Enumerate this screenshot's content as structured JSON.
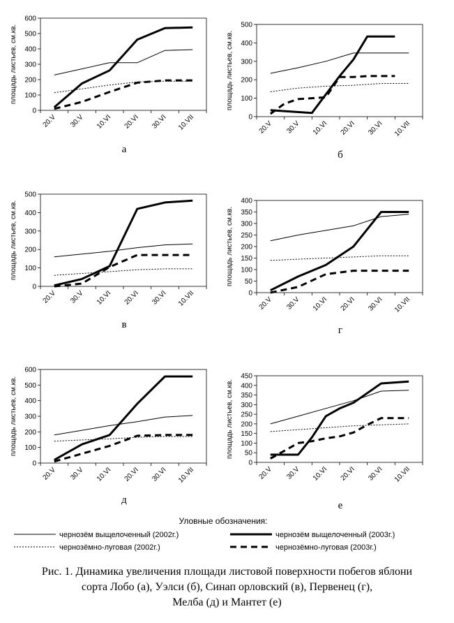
{
  "chart_data": [
    {
      "type": "line",
      "panel": "а",
      "ylabel": "площадь листьев, см.кв.",
      "ylim": [
        0,
        600
      ],
      "yticks": [
        0,
        100,
        200,
        300,
        400,
        500,
        600
      ],
      "categories": [
        "20.V",
        "30.V",
        "10.VI",
        "20.VI",
        "30.VI",
        "10.VII"
      ],
      "series": [
        {
          "name": "чернозём выщелоченный (2002г.)",
          "style": "thin",
          "x": [
            0,
            1,
            2,
            3,
            4,
            5
          ],
          "values": [
            230,
            270,
            310,
            310,
            390,
            395
          ]
        },
        {
          "name": "черноземно-луговая (2002г.)",
          "style": "dotted",
          "x": [
            0,
            1,
            2,
            3,
            4,
            5
          ],
          "values": [
            115,
            140,
            165,
            185,
            190,
            190
          ]
        },
        {
          "name": "чернозём выщелоченный (2003г.)",
          "style": "thick",
          "x": [
            0,
            1,
            2,
            3,
            4,
            5
          ],
          "values": [
            20,
            175,
            260,
            460,
            535,
            540
          ]
        },
        {
          "name": "черноземно-луговая (2003г.)",
          "style": "dashed",
          "x": [
            0,
            1,
            2,
            3,
            4,
            5
          ],
          "values": [
            10,
            55,
            120,
            180,
            195,
            195
          ]
        }
      ]
    },
    {
      "type": "line",
      "panel": "б",
      "ylabel": "площадь листьев, см.кв.",
      "ylim": [
        0,
        500
      ],
      "yticks": [
        0,
        100,
        200,
        300,
        400,
        500
      ],
      "categories": [
        "20.V",
        "30.V",
        "10.VI",
        "20.VI",
        "30.VI",
        "10.VII"
      ],
      "series": [
        {
          "name": "чернозём выщелоченный (2002г.)",
          "style": "thin",
          "x": [
            0,
            1,
            2,
            3,
            4,
            5
          ],
          "values": [
            235,
            265,
            300,
            345,
            345,
            345
          ]
        },
        {
          "name": "черноземно-луговая (2002г.)",
          "style": "dotted",
          "x": [
            0,
            1,
            2,
            3,
            4,
            5
          ],
          "values": [
            135,
            155,
            165,
            170,
            180,
            180
          ]
        },
        {
          "name": "чернозём выщелоченный (2003г.)",
          "style": "thick",
          "x": [
            0,
            0.5,
            1.5,
            2.5,
            3,
            3.5,
            4.5
          ],
          "values": [
            35,
            30,
            20,
            220,
            310,
            435,
            435
          ]
        },
        {
          "name": "черноземно-луговая (2003г.)",
          "style": "dashed",
          "x": [
            0,
            0.5,
            1,
            1.5,
            2,
            2.5,
            3,
            3.5,
            4.5
          ],
          "values": [
            15,
            70,
            95,
            100,
            105,
            215,
            215,
            220,
            220
          ]
        }
      ]
    },
    {
      "type": "line",
      "panel": "в",
      "ylabel": "площадь листьев, см.кв.",
      "ylim": [
        0,
        500
      ],
      "yticks": [
        0,
        100,
        200,
        300,
        400,
        500
      ],
      "categories": [
        "20.V",
        "30.V",
        "10.VI",
        "20.VI",
        "30.VI",
        "10.VII"
      ],
      "series": [
        {
          "name": "чернозём выщелоченный (2002г.)",
          "style": "thin",
          "x": [
            0,
            1,
            2,
            3,
            4,
            5
          ],
          "values": [
            160,
            175,
            190,
            210,
            225,
            230
          ]
        },
        {
          "name": "черноземно-луговая (2002г.)",
          "style": "dotted",
          "x": [
            0,
            1,
            2,
            3,
            4,
            5
          ],
          "values": [
            60,
            70,
            80,
            90,
            95,
            95
          ]
        },
        {
          "name": "чернозём выщелоченный (2003г.)",
          "style": "thick",
          "x": [
            0,
            1,
            2,
            3,
            4,
            5
          ],
          "values": [
            5,
            40,
            110,
            420,
            455,
            465
          ]
        },
        {
          "name": "черноземно-луговая (2003г.)",
          "style": "dashed",
          "x": [
            0,
            1,
            2,
            3,
            4,
            5
          ],
          "values": [
            0,
            15,
            105,
            170,
            170,
            170
          ]
        }
      ]
    },
    {
      "type": "line",
      "panel": "г",
      "ylabel": "площадь листьев, см.кв.",
      "ylim": [
        0,
        400
      ],
      "yticks": [
        0,
        50,
        100,
        150,
        200,
        250,
        300,
        350,
        400
      ],
      "categories": [
        "20.V",
        "30.V",
        "10.VI",
        "20.VI",
        "30.VI",
        "10.VII"
      ],
      "series": [
        {
          "name": "чернозём выщелоченный (2002г.)",
          "style": "thin",
          "x": [
            0,
            1,
            2,
            3,
            4,
            5
          ],
          "values": [
            225,
            250,
            270,
            290,
            330,
            340
          ]
        },
        {
          "name": "черноземно-луговая (2002г.)",
          "style": "dotted",
          "x": [
            0,
            1,
            2,
            3,
            4,
            5
          ],
          "values": [
            140,
            145,
            150,
            155,
            160,
            160
          ]
        },
        {
          "name": "чернозём выщелоченный (2003г.)",
          "style": "thick",
          "x": [
            0,
            1,
            2,
            3,
            4,
            5
          ],
          "values": [
            10,
            70,
            120,
            200,
            350,
            350
          ]
        },
        {
          "name": "черноземно-луговая (2003г.)",
          "style": "dashed",
          "x": [
            0,
            1,
            2,
            3,
            4,
            5
          ],
          "values": [
            0,
            25,
            80,
            95,
            95,
            95
          ]
        }
      ]
    },
    {
      "type": "line",
      "panel": "д",
      "ylabel": "площадь листьев, см.кв.",
      "ylim": [
        0,
        600
      ],
      "yticks": [
        0,
        100,
        200,
        300,
        400,
        500,
        600
      ],
      "categories": [
        "20.V",
        "30.V",
        "10.VI",
        "20.VI",
        "30.VI",
        "10.VII"
      ],
      "series": [
        {
          "name": "чернозём выщелоченный (2002г.)",
          "style": "thin",
          "x": [
            0,
            1,
            2,
            3,
            4,
            5
          ],
          "values": [
            180,
            210,
            240,
            265,
            295,
            305
          ]
        },
        {
          "name": "черноземно-луговая (2002г.)",
          "style": "dotted",
          "x": [
            0,
            1,
            2,
            3,
            4,
            5
          ],
          "values": [
            140,
            148,
            155,
            165,
            170,
            170
          ]
        },
        {
          "name": "чернозём выщелоченный (2003г.)",
          "style": "thick",
          "x": [
            0,
            1,
            2,
            3,
            4,
            5
          ],
          "values": [
            20,
            120,
            180,
            380,
            555,
            555
          ]
        },
        {
          "name": "черноземно-луговая (2003г.)",
          "style": "dashed",
          "x": [
            0,
            1,
            2,
            3,
            4,
            5
          ],
          "values": [
            10,
            60,
            110,
            175,
            180,
            180
          ]
        }
      ]
    },
    {
      "type": "line",
      "panel": "е",
      "ylabel": "площадь листьев, см.кв.",
      "ylim": [
        0,
        450
      ],
      "yticks": [
        0,
        50,
        100,
        150,
        200,
        250,
        300,
        350,
        400,
        450
      ],
      "categories": [
        "20.V",
        "30.V",
        "10.VI",
        "20.VI",
        "30.VI",
        "10.VII"
      ],
      "series": [
        {
          "name": "чернозём выщелоченный (2002г.)",
          "style": "thin",
          "x": [
            0,
            1,
            2,
            3,
            4,
            5
          ],
          "values": [
            200,
            240,
            280,
            320,
            370,
            375
          ]
        },
        {
          "name": "черноземно-луговая (2002г.)",
          "style": "dotted",
          "x": [
            0,
            1,
            2,
            3,
            4,
            5
          ],
          "values": [
            160,
            170,
            180,
            190,
            195,
            200
          ]
        },
        {
          "name": "чернозём выщелоченный (2003г.)",
          "style": "thick",
          "x": [
            0,
            0.5,
            1,
            1.5,
            2,
            2.5,
            3,
            3.5,
            4,
            4.5,
            5
          ],
          "values": [
            40,
            40,
            40,
            130,
            240,
            280,
            310,
            360,
            410,
            415,
            420
          ]
        },
        {
          "name": "черноземно-луговая (2003г.)",
          "style": "dashed",
          "x": [
            0,
            0.5,
            1,
            1.5,
            2,
            2.5,
            3,
            3.5,
            4,
            4.5,
            5
          ],
          "values": [
            20,
            60,
            100,
            110,
            125,
            135,
            155,
            195,
            230,
            230,
            230
          ]
        }
      ]
    }
  ],
  "legend": {
    "title": "Уловные обозначения:",
    "items": [
      {
        "label": "чернозём выщелоченный (2002г.)",
        "style": "thin"
      },
      {
        "label": "чернозёмно-луговая (2002г.)",
        "style": "dotted"
      },
      {
        "label": "чернозём выщелоченный (2003г.)",
        "style": "thick"
      },
      {
        "label": "чернозёмно-луговая (2003г.)",
        "style": "dashed"
      }
    ]
  },
  "caption": {
    "line1": "Рис. 1. Динамика увеличения площади листовой поверхности побегов яблони",
    "line2": "сорта Лобо  (а), Уэлси (б), Синап орловский (в), Первенец (г),",
    "line3": "Мелба (д) и Мантет (е)"
  }
}
